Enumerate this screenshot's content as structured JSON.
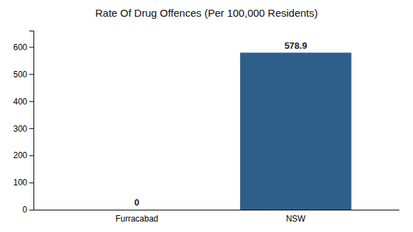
{
  "chart_data": {
    "type": "bar",
    "title": "Rate Of Drug Offences (Per 100,000 Residents)",
    "categories": [
      "Furracabad",
      "NSW"
    ],
    "values": [
      0,
      578.9
    ],
    "color": "#2e5f8a",
    "ylim": [
      0,
      660
    ],
    "yticks": [
      0,
      100,
      200,
      300,
      400,
      500,
      600
    ],
    "grid": false,
    "data_labels": true
  }
}
